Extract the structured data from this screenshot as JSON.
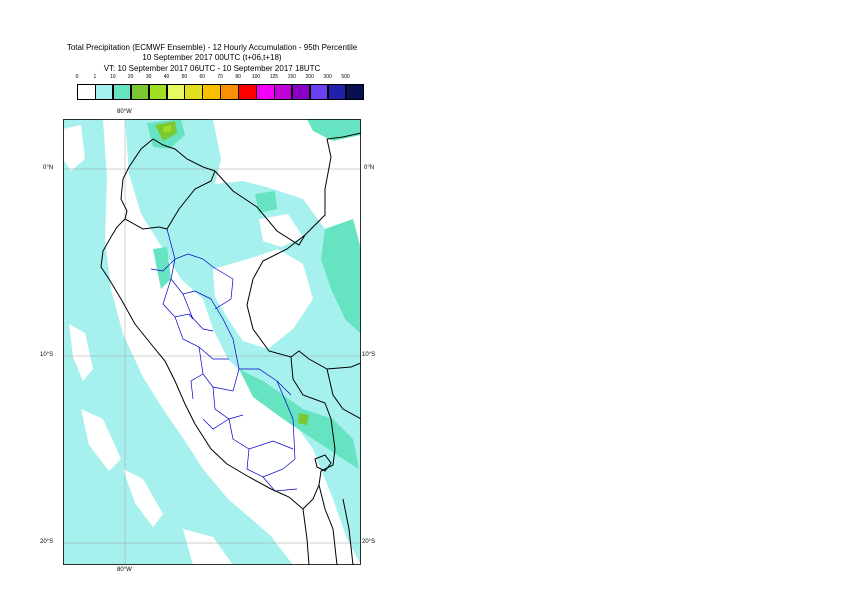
{
  "title": {
    "line1": "Total Precipitation (ECMWF Ensemble) - 12 Hourly Accumulation - 95th Percentile",
    "line2": "10 September 2017 00UTC (t+06,t+18)",
    "line3": "VT: 10 September 2017 06UTC - 10 September 2017 18UTC"
  },
  "legend": {
    "labels": [
      "0",
      "1",
      "10",
      "20",
      "30",
      "40",
      "50",
      "60",
      "70",
      "80",
      "100",
      "125",
      "150",
      "200",
      "300",
      "500"
    ],
    "colors": [
      "#ffffff",
      "#a6f1ee",
      "#66e3c1",
      "#7cc832",
      "#a0e020",
      "#e8f860",
      "#e0e020",
      "#f8c000",
      "#f89000",
      "#ff0000",
      "#f000f8",
      "#c000d8",
      "#8a00c8",
      "#6a40f0",
      "#2020a8",
      "#081050"
    ]
  },
  "axes": {
    "lon_top": "80°W",
    "lon_bottom": "80°W",
    "lat_left": [
      "0°N",
      "10°S",
      "20°S"
    ],
    "lat_right": [
      "0°N",
      "10°S",
      "20°S"
    ]
  },
  "map_colors": {
    "light": "#a6f1ee",
    "medium": "#66e3c1",
    "green": "#7cc832",
    "lime": "#a0e020",
    "admin": "#0000c8",
    "coast": "#000000",
    "grid": "#a0a0a0"
  }
}
